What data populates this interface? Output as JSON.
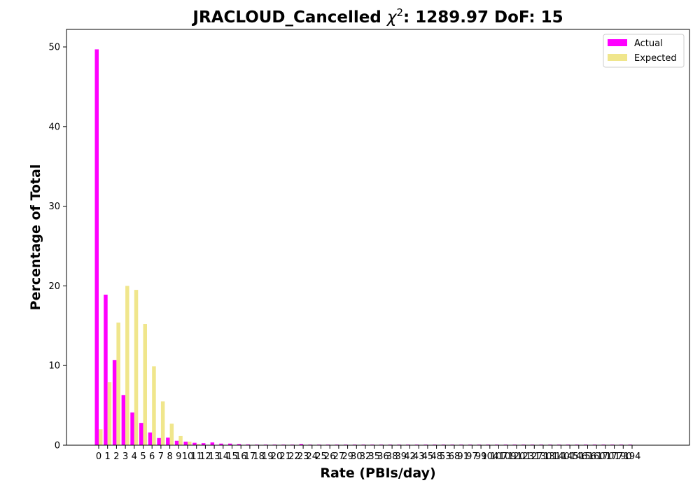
{
  "chart_data": {
    "type": "bar",
    "title_main": "JRACLOUD_Cancelled ",
    "title_chi": "χ",
    "title_sup": "2",
    "title_rest": ": 1289.97 DoF: 15",
    "xlabel": "Rate (PBIs/day)",
    "ylabel": "Percentage of Total",
    "ylim": [
      0,
      52.2
    ],
    "yticks": [
      0,
      10,
      20,
      30,
      40,
      50
    ],
    "legend_position": "top-right",
    "grid": false,
    "categories": [
      "0",
      "1",
      "2",
      "3",
      "4",
      "5",
      "6",
      "7",
      "8",
      "9",
      "10",
      "11",
      "12",
      "13",
      "14",
      "15",
      "16",
      "17",
      "18",
      "19",
      "20",
      "21",
      "22",
      "23",
      "24",
      "25",
      "26",
      "27",
      "29",
      "30",
      "32",
      "35",
      "36",
      "38",
      "39",
      "42",
      "43",
      "45",
      "48",
      "53",
      "68",
      "91",
      "97",
      "99",
      "104",
      "107",
      "109",
      "120",
      "123",
      "127",
      "130",
      "131",
      "140",
      "145",
      "146",
      "156",
      "160",
      "170",
      "177",
      "190",
      "194"
    ],
    "series": [
      {
        "name": "Actual",
        "color": "#ff00ff",
        "values": [
          49.7,
          18.9,
          10.7,
          6.3,
          4.1,
          2.8,
          1.6,
          0.9,
          0.95,
          0.55,
          0.45,
          0.3,
          0.25,
          0.35,
          0.2,
          0.2,
          0.15,
          0.1,
          0.08,
          0.08,
          0.08,
          0.08,
          0.08,
          0.15,
          0.08,
          0.08,
          0.08,
          0.08,
          0.08,
          0.08,
          0.08,
          0.08,
          0.08,
          0.08,
          0.08,
          0.08,
          0.08,
          0.08,
          0.08,
          0.08,
          0.08,
          0.08,
          0.08,
          0.08,
          0.08,
          0.08,
          0.08,
          0.08,
          0.08,
          0.08,
          0.08,
          0.08,
          0.08,
          0.08,
          0.08,
          0.08,
          0.08,
          0.08,
          0.08,
          0.08,
          0.08
        ]
      },
      {
        "name": "Expected",
        "color": "#f0e68c",
        "values": [
          2.0,
          7.9,
          15.4,
          20.0,
          19.5,
          15.2,
          9.9,
          5.5,
          2.7,
          1.15,
          0.45,
          0.15,
          0.05,
          0.02,
          0.01,
          0,
          0,
          0,
          0,
          0,
          0,
          0,
          0,
          0,
          0,
          0,
          0,
          0,
          0,
          0,
          0,
          0,
          0,
          0,
          0,
          0,
          0,
          0,
          0,
          0,
          0,
          0,
          0,
          0,
          0,
          0,
          0,
          0,
          0,
          0,
          0,
          0,
          0,
          0,
          0,
          0,
          0,
          0,
          0,
          0,
          0
        ]
      }
    ]
  }
}
